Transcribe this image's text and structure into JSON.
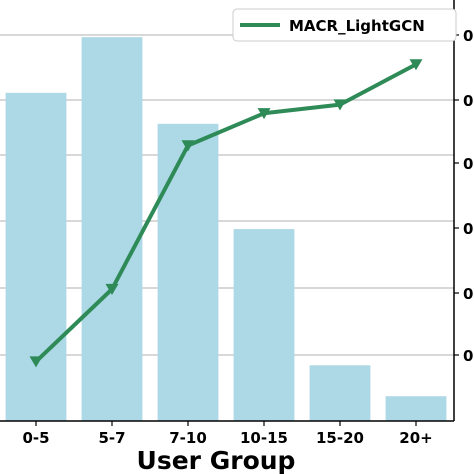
{
  "chart_data": {
    "type": "bar+line",
    "xlabel": "User Group",
    "categories": [
      "0-5",
      "5-7",
      "7-10",
      "10-15",
      "15-20",
      "20+"
    ],
    "bar_series": {
      "values": [
        0.51,
        0.6,
        0.46,
        0.29,
        0.07,
        0.02
      ],
      "color": "#add8e6"
    },
    "line_series": {
      "name": "MACR_LightGCN",
      "values": [
        0.076,
        0.193,
        0.425,
        0.477,
        0.491,
        0.556
      ],
      "color": "#2e8b57",
      "marker": "triangle-down"
    },
    "left_ylim": [
      -0.02,
      0.66
    ],
    "right_ylim": [
      -0.02,
      0.66
    ],
    "right_tick_labels": [
      "0",
      "0",
      "0",
      "0",
      "0",
      "0"
    ],
    "grid": "horizontal",
    "legend_position": "top-right"
  }
}
